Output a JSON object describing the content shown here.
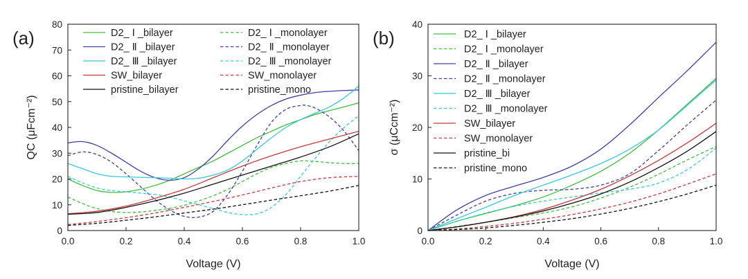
{
  "figure": {
    "panels": [
      "(a)",
      "(b)"
    ]
  },
  "chart_data": [
    {
      "type": "line",
      "panel": "(a)",
      "xlabel": "Voltage (V)",
      "ylabel": "QC (μFcm⁻²)",
      "xlim": [
        0,
        1
      ],
      "ylim": [
        0,
        80
      ],
      "xticks": [
        "0.0",
        "0.2",
        "0.4",
        "0.6",
        "0.8",
        "1.0"
      ],
      "yticks": [
        "0",
        "10",
        "20",
        "30",
        "40",
        "50",
        "60",
        "70",
        "80"
      ],
      "legend": {
        "location": "top-left",
        "columns": 2
      },
      "grid": false,
      "series": [
        {
          "name": "D2_ Ⅰ _bilayer",
          "color": "#3dbf3d",
          "dash": "solid",
          "x": [
            0,
            0.05,
            0.1,
            0.15,
            0.2,
            0.25,
            0.3,
            0.35,
            0.4,
            0.45,
            0.5,
            0.55,
            0.6,
            0.65,
            0.7,
            0.75,
            0.8,
            0.85,
            0.9,
            0.95,
            1.0
          ],
          "y": [
            20,
            17.5,
            15.5,
            14.8,
            15,
            16,
            17.5,
            19.5,
            22,
            24.5,
            27,
            30,
            33,
            36,
            38.5,
            41,
            43,
            45,
            46.5,
            48,
            49.5
          ]
        },
        {
          "name": "D2_ Ⅰ _monolayer",
          "color": "#3dbf3d",
          "dash": "dashed",
          "x": [
            0,
            0.05,
            0.1,
            0.15,
            0.2,
            0.25,
            0.3,
            0.35,
            0.4,
            0.45,
            0.5,
            0.55,
            0.6,
            0.65,
            0.7,
            0.75,
            0.8,
            0.85,
            0.9,
            0.95,
            1.0
          ],
          "y": [
            13,
            10.5,
            8.5,
            7.4,
            7,
            7.2,
            7.8,
            8.6,
            9.8,
            11.5,
            13.5,
            16,
            19,
            22,
            24.5,
            26,
            27,
            26.8,
            26.3,
            26,
            26
          ]
        },
        {
          "name": "D2_ Ⅱ _bilayer",
          "color": "#3f3fa8",
          "dash": "solid",
          "x": [
            0,
            0.05,
            0.1,
            0.15,
            0.2,
            0.25,
            0.3,
            0.35,
            0.4,
            0.45,
            0.5,
            0.55,
            0.6,
            0.65,
            0.7,
            0.75,
            0.8,
            0.85,
            0.9,
            0.95,
            1.0
          ],
          "y": [
            34,
            34.5,
            33,
            30,
            26.5,
            23,
            20.5,
            19.5,
            20.5,
            24,
            29,
            35,
            40.5,
            45,
            48.5,
            51,
            52.5,
            53.5,
            54,
            54.3,
            54.5
          ]
        },
        {
          "name": "D2_ Ⅱ _monolayer",
          "color": "#3f3fa8",
          "dash": "dashed",
          "x": [
            0,
            0.05,
            0.1,
            0.15,
            0.2,
            0.25,
            0.3,
            0.35,
            0.4,
            0.45,
            0.5,
            0.55,
            0.6,
            0.65,
            0.7,
            0.75,
            0.8,
            0.82,
            0.85,
            0.9,
            0.95,
            1.0
          ],
          "y": [
            29,
            30.5,
            29.5,
            26.5,
            22,
            17,
            12,
            8,
            5.5,
            5.2,
            7.5,
            14,
            23,
            33,
            42,
            47,
            48.5,
            48.5,
            47.5,
            44,
            38.5,
            31
          ]
        },
        {
          "name": "D2_ Ⅲ _bilayer",
          "color": "#36c8df",
          "dash": "solid",
          "x": [
            0,
            0.05,
            0.1,
            0.15,
            0.2,
            0.25,
            0.3,
            0.35,
            0.4,
            0.45,
            0.5,
            0.55,
            0.6,
            0.65,
            0.7,
            0.75,
            0.8,
            0.85,
            0.9,
            0.95,
            1.0
          ],
          "y": [
            26,
            24,
            22,
            21,
            20.8,
            20.6,
            20.5,
            20.3,
            20,
            20.3,
            21.5,
            23.5,
            27,
            31.5,
            36,
            40,
            43,
            45.5,
            48,
            51.5,
            56
          ]
        },
        {
          "name": "D2_ Ⅲ _monolayer",
          "color": "#36c8df",
          "dash": "dashed",
          "x": [
            0,
            0.05,
            0.1,
            0.15,
            0.2,
            0.25,
            0.3,
            0.35,
            0.4,
            0.45,
            0.5,
            0.55,
            0.6,
            0.65,
            0.7,
            0.75,
            0.8,
            0.85,
            0.9,
            0.95,
            1.0
          ],
          "y": [
            21,
            18.5,
            16.5,
            15.5,
            15,
            14.5,
            14,
            13,
            11.5,
            10,
            8.5,
            7,
            6.2,
            6.5,
            9,
            14,
            21,
            28,
            34.5,
            40,
            44.5
          ]
        },
        {
          "name": "SW_bilayer",
          "color": "#c8383a",
          "dash": "solid",
          "x": [
            0,
            0.1,
            0.2,
            0.3,
            0.4,
            0.5,
            0.6,
            0.7,
            0.8,
            0.9,
            1.0
          ],
          "y": [
            6.5,
            7.5,
            9.5,
            12.5,
            16,
            20.5,
            25,
            29,
            32.5,
            35.5,
            38.5
          ]
        },
        {
          "name": "SW_monolayer",
          "color": "#c8383a",
          "dash": "dashed",
          "x": [
            0,
            0.1,
            0.2,
            0.3,
            0.4,
            0.5,
            0.6,
            0.7,
            0.8,
            0.9,
            1.0
          ],
          "y": [
            2.3,
            3.5,
            5,
            6.8,
            9,
            11.3,
            13.8,
            16.5,
            19,
            20.5,
            21
          ]
        },
        {
          "name": "pristine_bilayer",
          "color": "#111111",
          "dash": "solid",
          "x": [
            0,
            0.1,
            0.2,
            0.3,
            0.4,
            0.5,
            0.6,
            0.7,
            0.8,
            0.9,
            1.0
          ],
          "y": [
            6.3,
            7,
            9,
            11.5,
            14.5,
            18,
            21.5,
            25,
            28.5,
            32.5,
            37.5
          ]
        },
        {
          "name": "pristine_mono",
          "color": "#111111",
          "dash": "dashed",
          "x": [
            0,
            0.1,
            0.2,
            0.3,
            0.4,
            0.5,
            0.6,
            0.7,
            0.8,
            0.9,
            1.0
          ],
          "y": [
            2,
            2.8,
            4,
            5.3,
            6.8,
            8.3,
            10,
            11.8,
            13.5,
            15.3,
            17.5
          ]
        }
      ]
    },
    {
      "type": "line",
      "panel": "(b)",
      "xlabel": "Voltage (V)",
      "ylabel": "σ (μCcm⁻²)",
      "xlim": [
        0,
        1
      ],
      "ylim": [
        0,
        40
      ],
      "xticks": [
        "0.0",
        "0.2",
        "0.4",
        "0.6",
        "0.8",
        "1.0"
      ],
      "yticks": [
        "0",
        "10",
        "20",
        "30",
        "40"
      ],
      "legend": {
        "location": "top-left",
        "columns": 1
      },
      "grid": false,
      "series": [
        {
          "name": "D2_ Ⅰ _bilayer",
          "color": "#3dbf3d",
          "dash": "solid",
          "x": [
            0,
            0.1,
            0.2,
            0.3,
            0.4,
            0.5,
            0.6,
            0.7,
            0.8,
            0.9,
            1.0
          ],
          "y": [
            0,
            1.8,
            3.3,
            4.8,
            6.5,
            8.8,
            11.5,
            15,
            19.5,
            24.5,
            29.5
          ]
        },
        {
          "name": "D2_ Ⅰ _monolayer",
          "color": "#3dbf3d",
          "dash": "dashed",
          "x": [
            0,
            0.1,
            0.2,
            0.3,
            0.4,
            0.5,
            0.6,
            0.7,
            0.8,
            0.9,
            1.0
          ],
          "y": [
            0,
            0.8,
            1.6,
            2.5,
            3.4,
            4.6,
            6.3,
            8.4,
            10.9,
            13.7,
            16.3
          ]
        },
        {
          "name": "D2_ Ⅱ _bilayer",
          "color": "#3f3fa8",
          "dash": "solid",
          "x": [
            0,
            0.1,
            0.2,
            0.3,
            0.4,
            0.5,
            0.6,
            0.7,
            0.8,
            0.9,
            1.0
          ],
          "y": [
            0,
            4,
            6.8,
            8.6,
            10.3,
            12.5,
            15.8,
            20.5,
            25.8,
            31,
            36.5
          ]
        },
        {
          "name": "D2_ Ⅱ _monolayer",
          "color": "#3f3fa8",
          "dash": "dashed",
          "x": [
            0,
            0.1,
            0.2,
            0.3,
            0.4,
            0.5,
            0.6,
            0.7,
            0.8,
            0.9,
            1.0
          ],
          "y": [
            0,
            3,
            5.7,
            7.2,
            7.8,
            8,
            8.8,
            11,
            15.5,
            20.5,
            25.3
          ]
        },
        {
          "name": "D2_ Ⅲ _bilayer",
          "color": "#36c8df",
          "dash": "solid",
          "x": [
            0,
            0.1,
            0.2,
            0.3,
            0.4,
            0.5,
            0.6,
            0.7,
            0.8,
            0.9,
            1.0
          ],
          "y": [
            0,
            2.3,
            4.5,
            6.8,
            8.8,
            10.8,
            13,
            15.8,
            19.5,
            24.3,
            29.2
          ]
        },
        {
          "name": "D2_ Ⅲ _monolayer",
          "color": "#36c8df",
          "dash": "dashed",
          "x": [
            0,
            0.1,
            0.2,
            0.3,
            0.4,
            0.5,
            0.6,
            0.7,
            0.8,
            0.9,
            1.0
          ],
          "y": [
            0,
            1.8,
            3.4,
            4.7,
            5.7,
            6.5,
            7.3,
            8,
            9.2,
            11.8,
            16
          ]
        },
        {
          "name": "SW_bilayer",
          "color": "#c8383a",
          "dash": "solid",
          "x": [
            0,
            0.1,
            0.2,
            0.3,
            0.4,
            0.5,
            0.6,
            0.7,
            0.8,
            0.9,
            1.0
          ],
          "y": [
            0,
            0.7,
            1.6,
            2.7,
            4.1,
            5.9,
            8,
            10.6,
            13.6,
            17,
            20.8
          ]
        },
        {
          "name": "SW_monolayer",
          "color": "#c8383a",
          "dash": "dashed",
          "x": [
            0,
            0.1,
            0.2,
            0.3,
            0.4,
            0.5,
            0.6,
            0.7,
            0.8,
            0.9,
            1.0
          ],
          "y": [
            0,
            0.3,
            0.8,
            1.4,
            2.2,
            3.1,
            4.2,
            5.5,
            7.1,
            9,
            11
          ]
        },
        {
          "name": "pristine_bi",
          "color": "#111111",
          "dash": "solid",
          "x": [
            0,
            0.1,
            0.2,
            0.3,
            0.4,
            0.5,
            0.6,
            0.7,
            0.8,
            0.9,
            1.0
          ],
          "y": [
            0,
            0.7,
            1.6,
            2.6,
            3.8,
            5.3,
            7.1,
            9.4,
            12.2,
            15.4,
            19.2
          ]
        },
        {
          "name": "pristine_mono",
          "color": "#111111",
          "dash": "dashed",
          "x": [
            0,
            0.1,
            0.2,
            0.3,
            0.4,
            0.5,
            0.6,
            0.7,
            0.8,
            0.9,
            1.0
          ],
          "y": [
            0,
            0.2,
            0.5,
            1,
            1.6,
            2.3,
            3.2,
            4.3,
            5.6,
            7.1,
            8.8
          ]
        }
      ]
    }
  ]
}
